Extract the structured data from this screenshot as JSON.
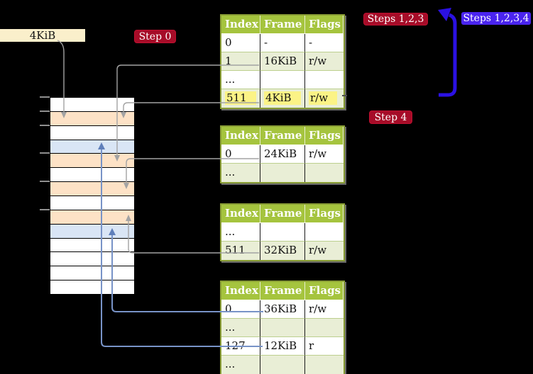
{
  "labels": {
    "frame_size_label": "4KiB",
    "step0": "Step 0",
    "steps123": "Steps 1,2,3",
    "steps1234": "Steps 1,2,3,4",
    "step4": "Step 4"
  },
  "colors": {
    "background": "#000000",
    "table_header_green": "#a5c43e",
    "table_row_green": "#e9eed6",
    "table_border_olive": "#8a9e35",
    "highlight_yellow": "#fbf386",
    "memory_frame_orange": "#fde2c6",
    "memory_frame_blue": "#d9e5f5",
    "badge_red": "#a60c28",
    "badge_blue": "#4a24ee",
    "big_arrow_blue": "#2b11e3",
    "connector_gray": "#a3a3a3",
    "connector_steelblue": "#7893c7",
    "label_cream": "#faefcb"
  },
  "memory": {
    "rows": [
      "white",
      "orange",
      "white",
      "blue",
      "orange",
      "white",
      "orange",
      "white",
      "orange",
      "blue",
      "white",
      "white",
      "white",
      "white"
    ]
  },
  "tables": [
    {
      "headers": [
        "Index",
        "Frame",
        "Flags"
      ],
      "rows": [
        {
          "cells": [
            "0",
            "-",
            "-"
          ],
          "shaded": false,
          "highlight": false
        },
        {
          "cells": [
            "1",
            "16KiB",
            "r/w"
          ],
          "shaded": true,
          "highlight": false
        },
        {
          "cells": [
            "...",
            "",
            ""
          ],
          "shaded": false,
          "highlight": false
        },
        {
          "cells": [
            "511",
            "4KiB",
            "r/w"
          ],
          "shaded": true,
          "highlight": true
        }
      ]
    },
    {
      "headers": [
        "Index",
        "Frame",
        "Flags"
      ],
      "rows": [
        {
          "cells": [
            "0",
            "24KiB",
            "r/w"
          ],
          "shaded": false,
          "highlight": false
        },
        {
          "cells": [
            "...",
            "",
            ""
          ],
          "shaded": true,
          "highlight": false
        }
      ]
    },
    {
      "headers": [
        "Index",
        "Frame",
        "Flags"
      ],
      "rows": [
        {
          "cells": [
            "...",
            "",
            ""
          ],
          "shaded": false,
          "highlight": false
        },
        {
          "cells": [
            "511",
            "32KiB",
            "r/w"
          ],
          "shaded": true,
          "highlight": false
        }
      ]
    },
    {
      "headers": [
        "Index",
        "Frame",
        "Flags"
      ],
      "rows": [
        {
          "cells": [
            "0",
            "36KiB",
            "r/w"
          ],
          "shaded": false,
          "highlight": false
        },
        {
          "cells": [
            "...",
            "",
            ""
          ],
          "shaded": true,
          "highlight": false
        },
        {
          "cells": [
            "127",
            "12KiB",
            "r"
          ],
          "shaded": false,
          "highlight": false
        },
        {
          "cells": [
            "...",
            "",
            ""
          ],
          "shaded": true,
          "highlight": false
        }
      ]
    }
  ]
}
